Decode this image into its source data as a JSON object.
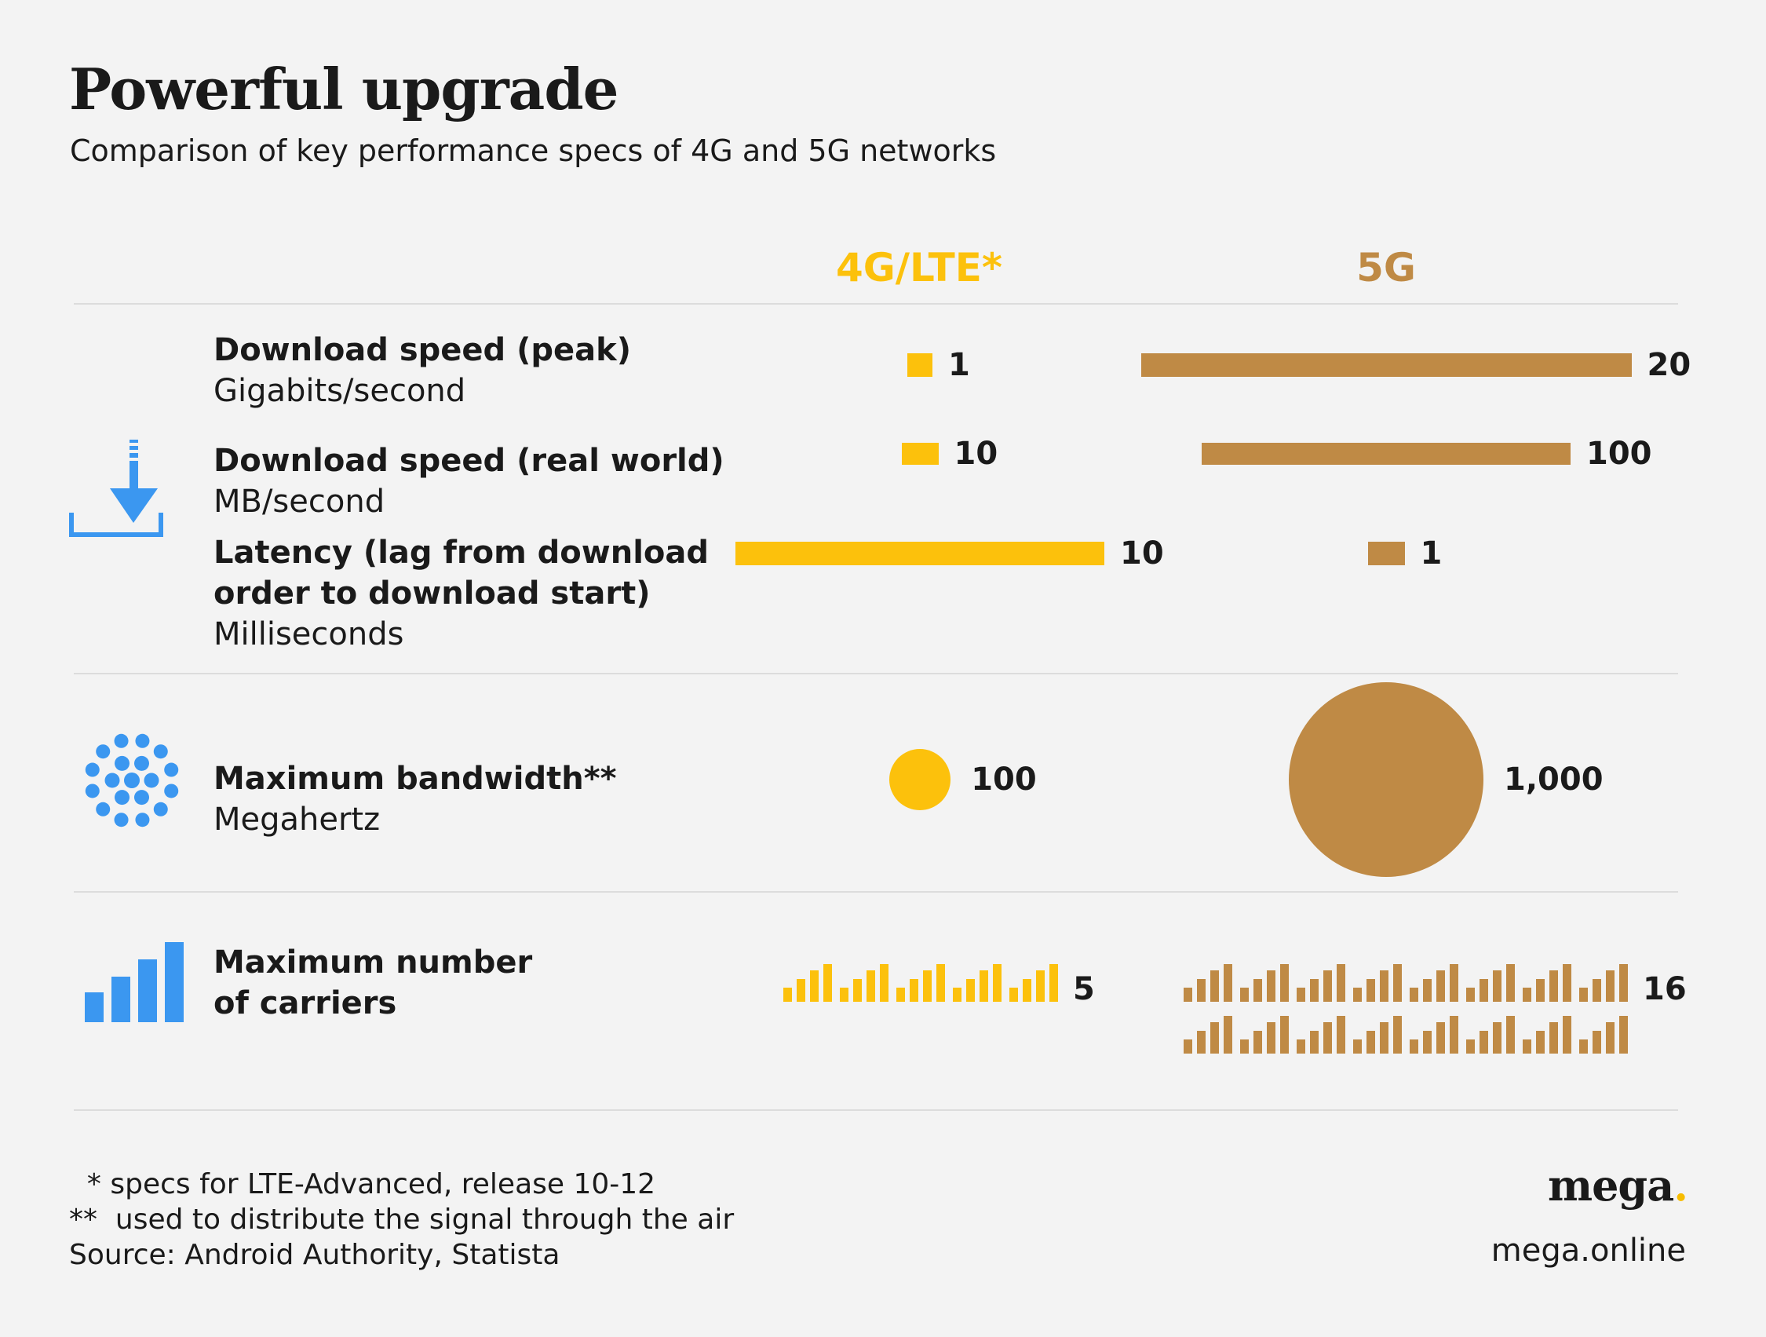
{
  "title": "Powerful upgrade",
  "subtitle": "Comparison of key performance specs of 4G and 5G networks",
  "colors": {
    "lte": "#fcc10c",
    "g5": "#bf8a45",
    "icon": "#3b97f0",
    "rule": "#dcdcdc"
  },
  "chart_data": {
    "type": "bar",
    "series": [
      {
        "name": "4G/LTE*"
      },
      {
        "name": "5G"
      }
    ],
    "metrics": [
      {
        "label": "Download speed (peak)",
        "unit": "Gigabits/second",
        "values": [
          1,
          20
        ],
        "labels": [
          "1",
          "20"
        ]
      },
      {
        "label": "Download speed (real world)",
        "unit": "MB/second",
        "values": [
          10,
          100
        ],
        "labels": [
          "10",
          "100"
        ]
      },
      {
        "label_lines": [
          "Latency (lag from download",
          "order to download start)"
        ],
        "unit": "Milliseconds",
        "values": [
          10,
          1
        ],
        "labels": [
          "10",
          "1"
        ]
      },
      {
        "label": "Maximum bandwidth**",
        "unit": "Megahertz",
        "values": [
          100,
          1000
        ],
        "labels": [
          "100",
          "1,000"
        ]
      },
      {
        "label_lines": [
          "Maximum number",
          "of carriers"
        ],
        "values": [
          5,
          16
        ],
        "labels": [
          "5",
          "16"
        ]
      }
    ]
  },
  "footnotes": [
    "  * specs for LTE-Advanced, release 10-12",
    "**  used to distribute the signal through the air",
    "Source: Android Authority, Statista"
  ],
  "brand": {
    "name": "mega",
    "dot": ".",
    "url": "mega.online"
  },
  "icons": [
    "download-icon",
    "bandwidth-dots-icon",
    "signal-bars-icon"
  ]
}
